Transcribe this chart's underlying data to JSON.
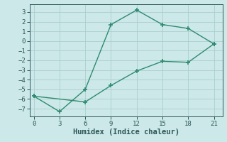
{
  "line1_x": [
    0,
    3,
    6,
    9,
    12,
    15,
    18,
    21
  ],
  "line1_y": [
    -5.7,
    -7.3,
    -5.0,
    1.7,
    3.2,
    1.7,
    1.3,
    -0.3
  ],
  "line2_x": [
    0,
    6,
    9,
    12,
    15,
    18,
    21
  ],
  "line2_y": [
    -5.7,
    -6.3,
    -4.6,
    -3.1,
    -2.1,
    -2.2,
    -0.3
  ],
  "line_color": "#2e8b70",
  "marker": "+",
  "markersize": 4,
  "markeredgewidth": 1.2,
  "linewidth": 1.0,
  "xlabel": "Humidex (Indice chaleur)",
  "xticks": [
    0,
    3,
    6,
    9,
    12,
    15,
    18,
    21
  ],
  "yticks": [
    -7,
    -6,
    -5,
    -4,
    -3,
    -2,
    -1,
    0,
    1,
    2,
    3
  ],
  "xlim": [
    -0.5,
    22
  ],
  "ylim": [
    -7.8,
    3.8
  ],
  "bg_color": "#cce8e8",
  "grid_color": "#aacece",
  "font_color": "#2a5555",
  "tick_fontsize": 6.5,
  "xlabel_fontsize": 7.5
}
